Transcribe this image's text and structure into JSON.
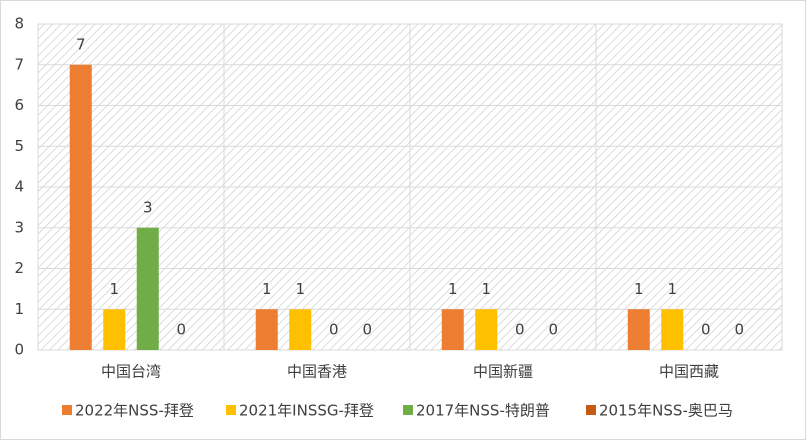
{
  "chart_data": {
    "type": "bar",
    "categories": [
      "中国台湾",
      "中国香港",
      "中国新疆",
      "中国西藏"
    ],
    "series": [
      {
        "name": "2022年NSS-拜登",
        "color": "#ED7D31",
        "values": [
          7,
          1,
          1,
          1
        ]
      },
      {
        "name": "2021年INSSG-拜登",
        "color": "#FFC000",
        "values": [
          1,
          1,
          1,
          1
        ]
      },
      {
        "name": "2017年NSS-特朗普",
        "color": "#70AD47",
        "values": [
          3,
          0,
          0,
          0
        ]
      },
      {
        "name": "2015年NSS-奥巴马",
        "color": "#C55A11",
        "values": [
          0,
          0,
          0,
          0
        ]
      }
    ],
    "ylim": [
      0,
      8
    ],
    "yticks": [
      0,
      1,
      2,
      3,
      4,
      5,
      6,
      7,
      8
    ],
    "grid": true,
    "legend": "bottom"
  }
}
